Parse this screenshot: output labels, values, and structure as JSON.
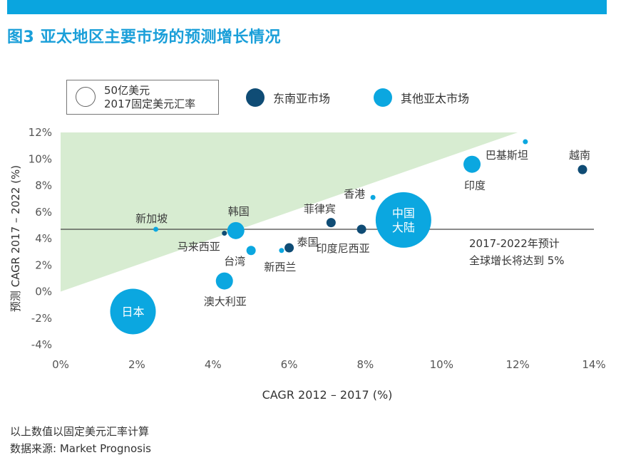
{
  "header": {
    "title": "图3 亚太地区主要市场的预测增长情况"
  },
  "legend": {
    "size_label_line1": "50亿美元",
    "size_label_line2": "2017固定美元汇率",
    "items": [
      {
        "label": "东南亚市场",
        "color": "#0f4c75"
      },
      {
        "label": "其他亚太市场",
        "color": "#0ba7e0"
      }
    ]
  },
  "chart_data": {
    "type": "scatter",
    "xlabel": "CAGR 2012 – 2017 (%)",
    "ylabel": "预测 CAGR 2017 – 2022 (%)",
    "xlim": [
      0,
      14
    ],
    "ylim": [
      -4,
      12
    ],
    "x_ticks": [
      "0%",
      "2%",
      "4%",
      "6%",
      "8%",
      "10%",
      "12%",
      "14%"
    ],
    "y_ticks": [
      "12%",
      "10%",
      "8%",
      "6%",
      "4%",
      "2%",
      "0%",
      "-2%",
      "-4%"
    ],
    "reference_line": {
      "y": 4.7
    },
    "annotation": {
      "line1": "2017-2022年预计",
      "line2": "全球增长将达到 5%"
    },
    "shaded_region": "above y = x",
    "points": [
      {
        "label": "日本",
        "x": 1.9,
        "y": -1.5,
        "group": "其他亚太市场",
        "size": "large",
        "label_inside": true
      },
      {
        "label": "新加坡",
        "x": 2.5,
        "y": 4.7,
        "group": "其他亚太市场",
        "size": "tiny"
      },
      {
        "label": "马来西亚",
        "x": 4.3,
        "y": 4.4,
        "group": "东南亚市场",
        "size": "tiny"
      },
      {
        "label": "韩国",
        "x": 4.6,
        "y": 4.6,
        "group": "其他亚太市场",
        "size": "medium"
      },
      {
        "label": "台湾",
        "x": 5.0,
        "y": 3.1,
        "group": "其他亚太市场",
        "size": "small"
      },
      {
        "label": "澳大利亚",
        "x": 4.3,
        "y": 0.8,
        "group": "其他亚太市场",
        "size": "medium"
      },
      {
        "label": "新西兰",
        "x": 5.8,
        "y": 3.1,
        "group": "其他亚太市场",
        "size": "tiny"
      },
      {
        "label": "泰国",
        "x": 6.0,
        "y": 3.3,
        "group": "东南亚市场",
        "size": "small"
      },
      {
        "label": "菲律宾",
        "x": 7.1,
        "y": 5.2,
        "group": "东南亚市场",
        "size": "small"
      },
      {
        "label": "印度尼西亚",
        "x": 7.9,
        "y": 4.7,
        "group": "东南亚市场",
        "size": "small"
      },
      {
        "label": "香港",
        "x": 8.2,
        "y": 7.1,
        "group": "其他亚太市场",
        "size": "tiny"
      },
      {
        "label": "中国大陆",
        "x": 9.0,
        "y": 5.4,
        "group": "其他亚太市场",
        "size": "xlarge",
        "label_inside": true
      },
      {
        "label": "印度",
        "x": 10.8,
        "y": 9.6,
        "group": "其他亚太市场",
        "size": "medium"
      },
      {
        "label": "巴基斯坦",
        "x": 12.2,
        "y": 11.3,
        "group": "其他亚太市场",
        "size": "tiny"
      },
      {
        "label": "越南",
        "x": 13.7,
        "y": 9.2,
        "group": "东南亚市场",
        "size": "small"
      }
    ]
  },
  "footer": {
    "note": "以上数值以固定美元汇率计算",
    "source": "数据来源: Market Prognosis"
  }
}
